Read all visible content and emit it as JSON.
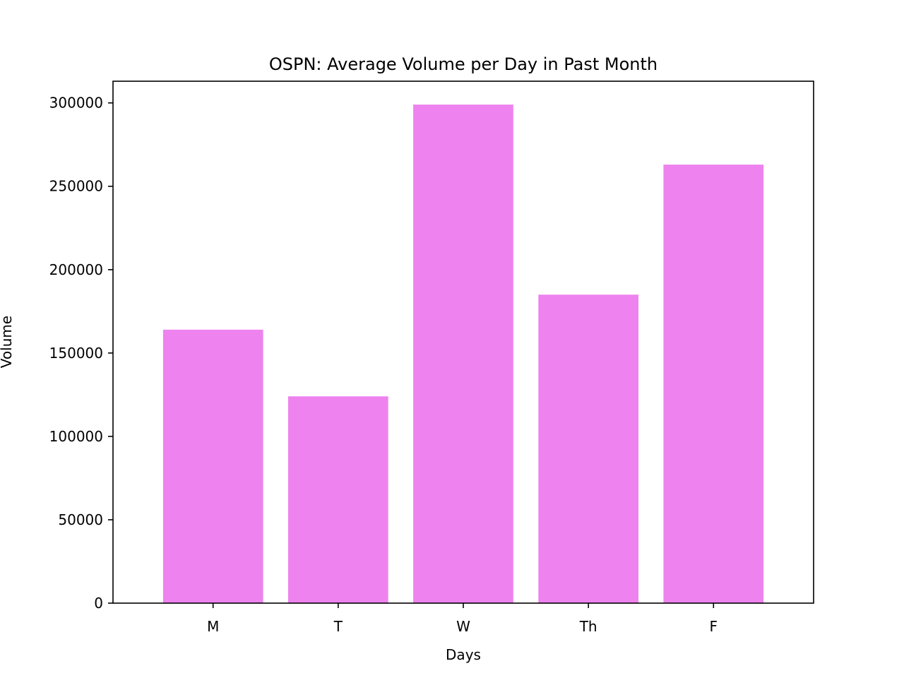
{
  "chart_data": {
    "type": "bar",
    "title": "OSPN: Average Volume per Day in Past Month",
    "xlabel": "Days",
    "ylabel": "Volume",
    "categories": [
      "M",
      "T",
      "W",
      "Th",
      "F"
    ],
    "values": [
      164000,
      124000,
      299000,
      185000,
      263000
    ],
    "ylim": [
      0,
      313000
    ],
    "yticks": [
      0,
      50000,
      100000,
      150000,
      200000,
      250000,
      300000
    ],
    "bar_color": "#ee82ee",
    "grid": false,
    "legend": "none"
  }
}
